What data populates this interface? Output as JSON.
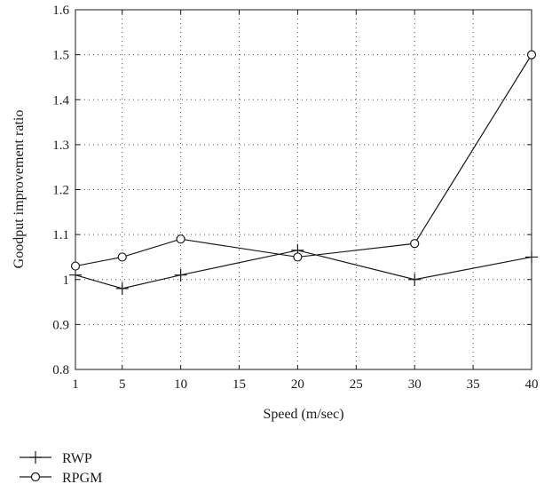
{
  "chart_data": {
    "type": "line",
    "xlabel": "Speed (m/sec)",
    "ylabel": "Goodput improvement ratio",
    "xlim": [
      1,
      40
    ],
    "ylim": [
      0.8,
      1.6
    ],
    "x_ticks": [
      1,
      5,
      10,
      15,
      20,
      25,
      30,
      35,
      40
    ],
    "x_tick_labels": [
      "1",
      "5",
      "10",
      "15",
      "20",
      "25",
      "30",
      "35",
      "40"
    ],
    "y_ticks": [
      0.8,
      0.9,
      1.0,
      1.1,
      1.2,
      1.3,
      1.4,
      1.5,
      1.6
    ],
    "y_tick_labels": [
      "0.8",
      "0.9",
      "1",
      "1.1",
      "1.2",
      "1.3",
      "1.4",
      "1.5",
      "1.6"
    ],
    "grid": true,
    "grid_style": "dotted",
    "legend_position": "bottom-left, below chart",
    "line_color": "#1a1a1a",
    "series": [
      {
        "name": "RWP",
        "marker": "plus",
        "x": [
          1,
          5,
          10,
          20,
          30,
          40
        ],
        "y": [
          1.01,
          0.98,
          1.01,
          1.065,
          1.0,
          1.05
        ]
      },
      {
        "name": "RPGM",
        "marker": "circle",
        "x": [
          1,
          5,
          10,
          20,
          30,
          40
        ],
        "y": [
          1.03,
          1.05,
          1.09,
          1.05,
          1.08,
          1.5
        ]
      }
    ]
  }
}
